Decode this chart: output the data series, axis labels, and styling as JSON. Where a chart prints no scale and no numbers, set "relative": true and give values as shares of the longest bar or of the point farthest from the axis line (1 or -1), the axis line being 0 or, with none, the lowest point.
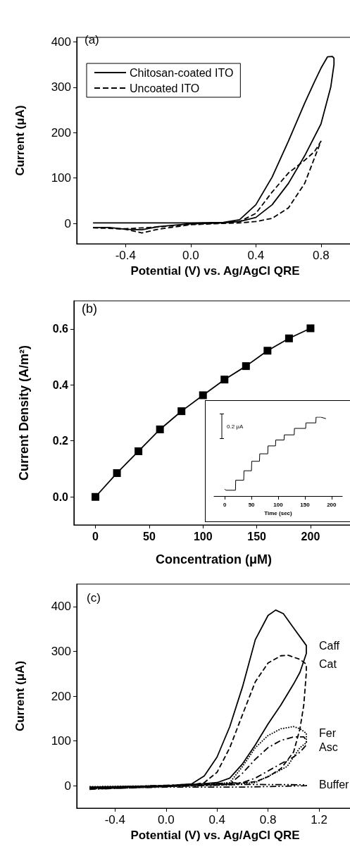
{
  "chart_data": [
    {
      "type": "line",
      "xlabel": "Potential (V) vs. Ag/AgCl QRE",
      "ylabel": "Current (μA)",
      "annotations": [
        "(a)"
      ],
      "xlim": [
        -0.7,
        1.0
      ],
      "xticks": [
        -0.4,
        {
          "value": 0,
          "label": "0.0"
        },
        0.4,
        0.8
      ],
      "ylim": [
        -45,
        410
      ],
      "yticks": [
        0,
        100,
        200,
        300,
        400
      ],
      "grid": false,
      "legend": "top left",
      "marker": "none",
      "series": [
        {
          "name": "Chitosan-coated ITO",
          "color": "#000000",
          "line_style": "solid",
          "x": [
            -0.6,
            -0.4,
            -0.2,
            0,
            0.2,
            0.3,
            0.4,
            0.5,
            0.6,
            0.7,
            0.76,
            0.8,
            0.84,
            0.87,
            0.88,
            0.88,
            0.86,
            0.8,
            0.7,
            0.6,
            0.5,
            0.4,
            0.3,
            0.2,
            0,
            -0.2,
            -0.3,
            -0.4,
            -0.5,
            -0.6
          ],
          "values": [
            1,
            1,
            1,
            1,
            2,
            8,
            41,
            102,
            181,
            265,
            312,
            342,
            367,
            368,
            364,
            350,
            300,
            219,
            149,
            88,
            41,
            13,
            4,
            1,
            -1,
            -7,
            -14,
            -13,
            -9,
            -9
          ]
        },
        {
          "name": "Uncoated ITO",
          "color": "#000000",
          "line_style": "dashed",
          "x": [
            -0.6,
            -0.4,
            -0.3,
            -0.2,
            0,
            0.2,
            0.3,
            0.4,
            0.5,
            0.6,
            0.7,
            0.76,
            0.8,
            0.76,
            0.7,
            0.6,
            0.5,
            0.4,
            0.3,
            0.2,
            0,
            -0.2,
            -0.4,
            -0.6
          ],
          "values": [
            -9,
            -13,
            -21,
            -13,
            -3,
            0,
            1,
            4,
            11,
            34,
            88,
            144,
            181,
            158,
            139,
            111,
            69,
            22,
            4,
            1,
            -2,
            -8,
            -12,
            -10
          ]
        }
      ]
    },
    {
      "type": "line",
      "xlabel": "Concentration (μM)",
      "ylabel": "Current Density (A/m²)",
      "annotations": [
        "(b)"
      ],
      "xlim": [
        -20,
        240
      ],
      "xticks": [
        0,
        50,
        100,
        150,
        200
      ],
      "ylim": [
        -0.1,
        0.7
      ],
      "yticks": [
        {
          "value": 0,
          "label": "0.0"
        },
        0.2,
        0.4,
        0.6
      ],
      "grid": false,
      "marker": "square",
      "series": [
        {
          "color": "#000000",
          "line_style": "solid",
          "x": [
            0,
            20,
            40,
            60,
            80,
            100,
            120,
            140,
            160,
            180,
            200
          ],
          "values": [
            0,
            0.085,
            0.163,
            0.241,
            0.306,
            0.363,
            0.419,
            0.467,
            0.522,
            0.566,
            0.602
          ]
        }
      ]
    },
    {
      "type": "line",
      "xlabel": "Time (sec)",
      "annotations": [
        "0.2 μA"
      ],
      "relative": true,
      "tick_labels": "x",
      "xlim": [
        -20,
        220
      ],
      "xticks": [
        0,
        50,
        100,
        150,
        200
      ],
      "grid": false,
      "marker": "none",
      "series": [
        {
          "color": "#000000",
          "line_style": "solid",
          "x": [
            0,
            2,
            20,
            20.5,
            35.5,
            36,
            50,
            50.5,
            65,
            65.5,
            80.5,
            81,
            95,
            95.5,
            111,
            111.5,
            130,
            130.5,
            151.5,
            152,
            170.5,
            171,
            180,
            189.5
          ],
          "values": [
            0.088,
            0.073,
            0.073,
            0.2,
            0.2,
            0.32,
            0.32,
            0.44,
            0.44,
            0.535,
            0.535,
            0.635,
            0.635,
            0.71,
            0.71,
            0.775,
            0.775,
            0.857,
            0.857,
            0.927,
            0.927,
            1.0,
            1.0,
            0.98
          ]
        }
      ]
    },
    {
      "type": "line",
      "xlabel": "Potential (V) vs. Ag/AgCl QRE",
      "ylabel": "Current (μA)",
      "annotations": [
        "(c)"
      ],
      "xlim": [
        -0.7,
        1.47
      ],
      "xticks": [
        -0.4,
        {
          "value": 0,
          "label": "0.0"
        },
        0.4,
        0.8,
        1.2
      ],
      "ylim": [
        -50,
        450
      ],
      "yticks": [
        0,
        100,
        200,
        300,
        400
      ],
      "grid": false,
      "legend": false,
      "marker": "none",
      "series": [
        {
          "name": "Caff",
          "color": "#000000",
          "line_style": "solid",
          "x": [
            -0.6,
            -0.3,
            0,
            0.2,
            0.3,
            0.4,
            0.5,
            0.6,
            0.7,
            0.8,
            0.86,
            0.92,
            1.0,
            1.1,
            1.1,
            1.05,
            1.0,
            0.9,
            0.8,
            0.7,
            0.6,
            0.5,
            0.4,
            0.2,
            0,
            -0.3,
            -0.6
          ],
          "values": [
            -3,
            -2,
            0,
            4,
            22,
            64,
            132,
            221,
            326,
            380,
            392,
            384,
            352,
            313,
            295,
            253,
            227,
            180,
            138,
            91,
            49,
            17,
            7,
            2,
            -1,
            -3,
            -5
          ]
        },
        {
          "name": "Cat",
          "color": "#000000",
          "line_style": "dashed",
          "x": [
            -0.6,
            -0.3,
            0,
            0.2,
            0.3,
            0.4,
            0.5,
            0.6,
            0.7,
            0.8,
            0.9,
            0.96,
            1.05,
            1.1,
            1.1,
            1.08,
            1.05,
            1.0,
            0.9,
            0.8,
            0.7,
            0.5,
            0,
            -0.3,
            -0.6
          ],
          "values": [
            -4,
            -2,
            0,
            2,
            7,
            30,
            85,
            159,
            232,
            274,
            290,
            291,
            282,
            271,
            253,
            180,
            127,
            75,
            38,
            20,
            9,
            4,
            -1,
            -3,
            -6
          ]
        },
        {
          "name": "Fer",
          "color": "#000000",
          "line_style": "dotted",
          "x": [
            -0.6,
            0,
            0.3,
            0.5,
            0.6,
            0.7,
            0.8,
            0.9,
            1.0,
            1.05,
            1.1,
            1.1,
            1.05,
            1.0,
            0.95,
            0.85,
            0.7,
            0.5,
            0,
            -0.6
          ],
          "values": [
            -2,
            0,
            2,
            7,
            43,
            85,
            112,
            127,
            132,
            127,
            117,
            96,
            85,
            64,
            43,
            28,
            7,
            2,
            0,
            -3
          ]
        },
        {
          "name": "Asc",
          "color": "#000000",
          "line_style": "dashdot",
          "x": [
            -0.6,
            0,
            0.3,
            0.5,
            0.6,
            0.7,
            0.8,
            0.9,
            1.0,
            1.08,
            1.1,
            1.1,
            1.05,
            1.0,
            0.9,
            0.8,
            0.7,
            0.6,
            0,
            -0.6
          ],
          "values": [
            -6,
            -1,
            1,
            4,
            28,
            59,
            85,
            101,
            109,
            109,
            101,
            91,
            75,
            64,
            49,
            33,
            17,
            7,
            1,
            -5
          ]
        },
        {
          "name": "Buffer",
          "color": "#000000",
          "line_style": "dashdotdot",
          "x": [
            -0.6,
            0,
            0.6,
            1.1,
            1.1,
            0.6,
            0,
            -0.6
          ],
          "values": [
            -8,
            -2,
            3,
            2,
            0,
            -3,
            -3,
            -7
          ]
        }
      ]
    }
  ]
}
